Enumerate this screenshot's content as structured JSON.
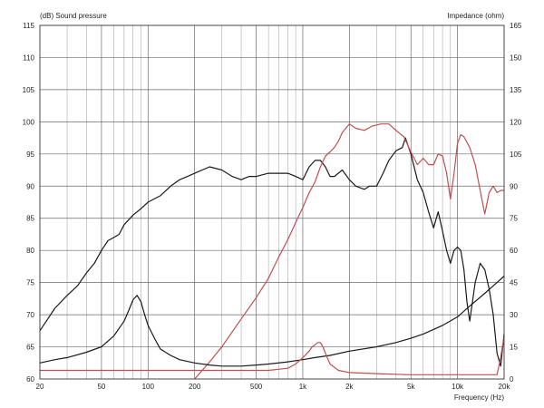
{
  "chart_data": {
    "type": "line",
    "title": "",
    "ylabel": "(dB)  Sound pressure",
    "y2label": "Impedance  (ohm)",
    "xlabel": "Frequency  (Hz)",
    "x_scale": "log",
    "xlim": [
      20,
      20000
    ],
    "ylim": [
      60,
      115
    ],
    "y2lim": [
      0,
      165
    ],
    "x_ticks": [
      {
        "value": 20,
        "label": "20"
      },
      {
        "value": 50,
        "label": "50"
      },
      {
        "value": 100,
        "label": "100"
      },
      {
        "value": 200,
        "label": "200"
      },
      {
        "value": 500,
        "label": "500"
      },
      {
        "value": 1000,
        "label": "1k"
      },
      {
        "value": 2000,
        "label": "2k"
      },
      {
        "value": 5000,
        "label": "5k"
      },
      {
        "value": 10000,
        "label": "10k"
      },
      {
        "value": 20000,
        "label": "20k"
      }
    ],
    "y_ticks": [
      {
        "value": 60,
        "label": "60"
      },
      {
        "value": 65,
        "label": "65"
      },
      {
        "value": 70,
        "label": "70"
      },
      {
        "value": 75,
        "label": "75"
      },
      {
        "value": 80,
        "label": "80"
      },
      {
        "value": 85,
        "label": "85"
      },
      {
        "value": 90,
        "label": "90"
      },
      {
        "value": 95,
        "label": "95"
      },
      {
        "value": 100,
        "label": "100"
      },
      {
        "value": 105,
        "label": "105"
      },
      {
        "value": 110,
        "label": "110"
      },
      {
        "value": 115,
        "label": "115"
      }
    ],
    "y2_ticks": [
      {
        "value": 0,
        "label": "0"
      },
      {
        "value": 15,
        "label": "15"
      },
      {
        "value": 30,
        "label": "30"
      },
      {
        "value": 45,
        "label": "45"
      },
      {
        "value": 60,
        "label": "60"
      },
      {
        "value": 75,
        "label": "75"
      },
      {
        "value": 90,
        "label": "90"
      },
      {
        "value": 105,
        "label": "105"
      },
      {
        "value": 120,
        "label": "120"
      },
      {
        "value": 135,
        "label": "135"
      },
      {
        "value": 150,
        "label": "150"
      },
      {
        "value": 165,
        "label": "165"
      }
    ],
    "grid": true,
    "series": [
      {
        "axis": "left",
        "color": "#1a1a1a",
        "x": [
          20,
          22,
          25,
          30,
          35,
          40,
          45,
          50,
          55,
          60,
          65,
          70,
          80,
          90,
          100,
          120,
          140,
          160,
          180,
          200,
          250,
          300,
          350,
          400,
          450,
          500,
          600,
          700,
          800,
          900,
          1000,
          1100,
          1200,
          1300,
          1400,
          1500,
          1600,
          1800,
          2000,
          2200,
          2500,
          2700,
          3000,
          3300,
          3600,
          4000,
          4400,
          4600,
          5000,
          5500,
          6000,
          6500,
          7000,
          7500,
          8000,
          8500,
          9000,
          9500,
          10000,
          10500,
          11000,
          11500,
          12000,
          13000,
          14000,
          15000,
          16000,
          17000,
          18000,
          19000,
          20000
        ],
        "y": [
          67.5,
          69,
          71,
          73,
          74.5,
          76.5,
          78,
          80,
          81.5,
          82,
          82.5,
          84,
          85.5,
          86.5,
          87.5,
          88.5,
          90,
          91,
          91.5,
          92,
          93,
          92.5,
          91.5,
          91,
          91.5,
          91.5,
          92,
          92,
          92,
          91.5,
          91,
          93,
          94,
          94,
          93,
          91.5,
          91.5,
          92.5,
          91,
          90,
          89.5,
          90,
          90,
          92,
          94,
          95.5,
          96,
          97.5,
          95,
          91,
          89,
          86,
          83.5,
          86,
          83,
          80,
          78,
          80,
          80.5,
          80,
          77,
          72,
          69,
          75,
          78,
          77,
          74,
          70,
          64,
          62,
          67
        ]
      },
      {
        "axis": "right",
        "color": "#c0504d",
        "x": [
          200,
          250,
          300,
          400,
          500,
          600,
          700,
          800,
          900,
          1000,
          1100,
          1200,
          1300,
          1400,
          1500,
          1600,
          1700,
          1800,
          2000,
          2200,
          2500,
          2800,
          3200,
          3600,
          4000,
          4500,
          5000,
          5500,
          6000,
          6500,
          7000,
          7500,
          8000,
          8500,
          9000,
          9500,
          10000,
          10500,
          11000,
          12000,
          13000,
          14000,
          15000,
          16000,
          17000,
          18000,
          19000,
          20000
        ],
        "y": [
          0,
          8,
          15,
          28,
          38,
          47,
          57,
          65,
          73,
          80,
          87,
          92,
          99,
          104,
          106,
          108,
          111,
          115,
          119,
          117,
          116,
          118,
          119,
          119,
          116,
          113,
          106,
          100,
          103,
          100,
          100,
          105,
          104,
          96,
          84,
          96,
          110,
          114,
          113,
          108,
          100,
          88,
          77,
          87,
          90,
          87,
          88,
          88
        ]
      },
      {
        "axis": "right",
        "color": "#1a1a1a",
        "x": [
          20,
          25,
          30,
          40,
          50,
          60,
          70,
          75,
          80,
          85,
          90,
          95,
          100,
          110,
          120,
          140,
          160,
          200,
          250,
          300,
          400,
          500,
          600,
          800,
          1000,
          1200,
          1500,
          2000,
          3000,
          4000,
          5000,
          6000,
          8000,
          10000,
          12000,
          15000,
          18000,
          20000
        ],
        "y": [
          7.5,
          9,
          10,
          12.5,
          15,
          20,
          27,
          32,
          37,
          39,
          36,
          30,
          25,
          19,
          14,
          11,
          9,
          7.5,
          6.5,
          6,
          6,
          6.5,
          7,
          8,
          9,
          10,
          11,
          13,
          15,
          17,
          19,
          21,
          25,
          29,
          34,
          40,
          45,
          48
        ]
      },
      {
        "axis": "right",
        "color": "#c0504d",
        "x": [
          20,
          50,
          100,
          200,
          400,
          600,
          800,
          900,
          1000,
          1100,
          1150,
          1200,
          1250,
          1300,
          1350,
          1400,
          1500,
          1700,
          2000,
          3000,
          5000,
          10000,
          15000,
          18000,
          19000,
          20000
        ],
        "y": [
          4,
          4,
          4,
          4,
          4,
          4,
          5,
          7,
          10,
          13,
          15,
          16,
          17,
          17,
          15,
          12,
          7,
          4,
          3,
          2.5,
          2,
          2,
          2,
          2,
          10,
          20
        ]
      }
    ]
  }
}
